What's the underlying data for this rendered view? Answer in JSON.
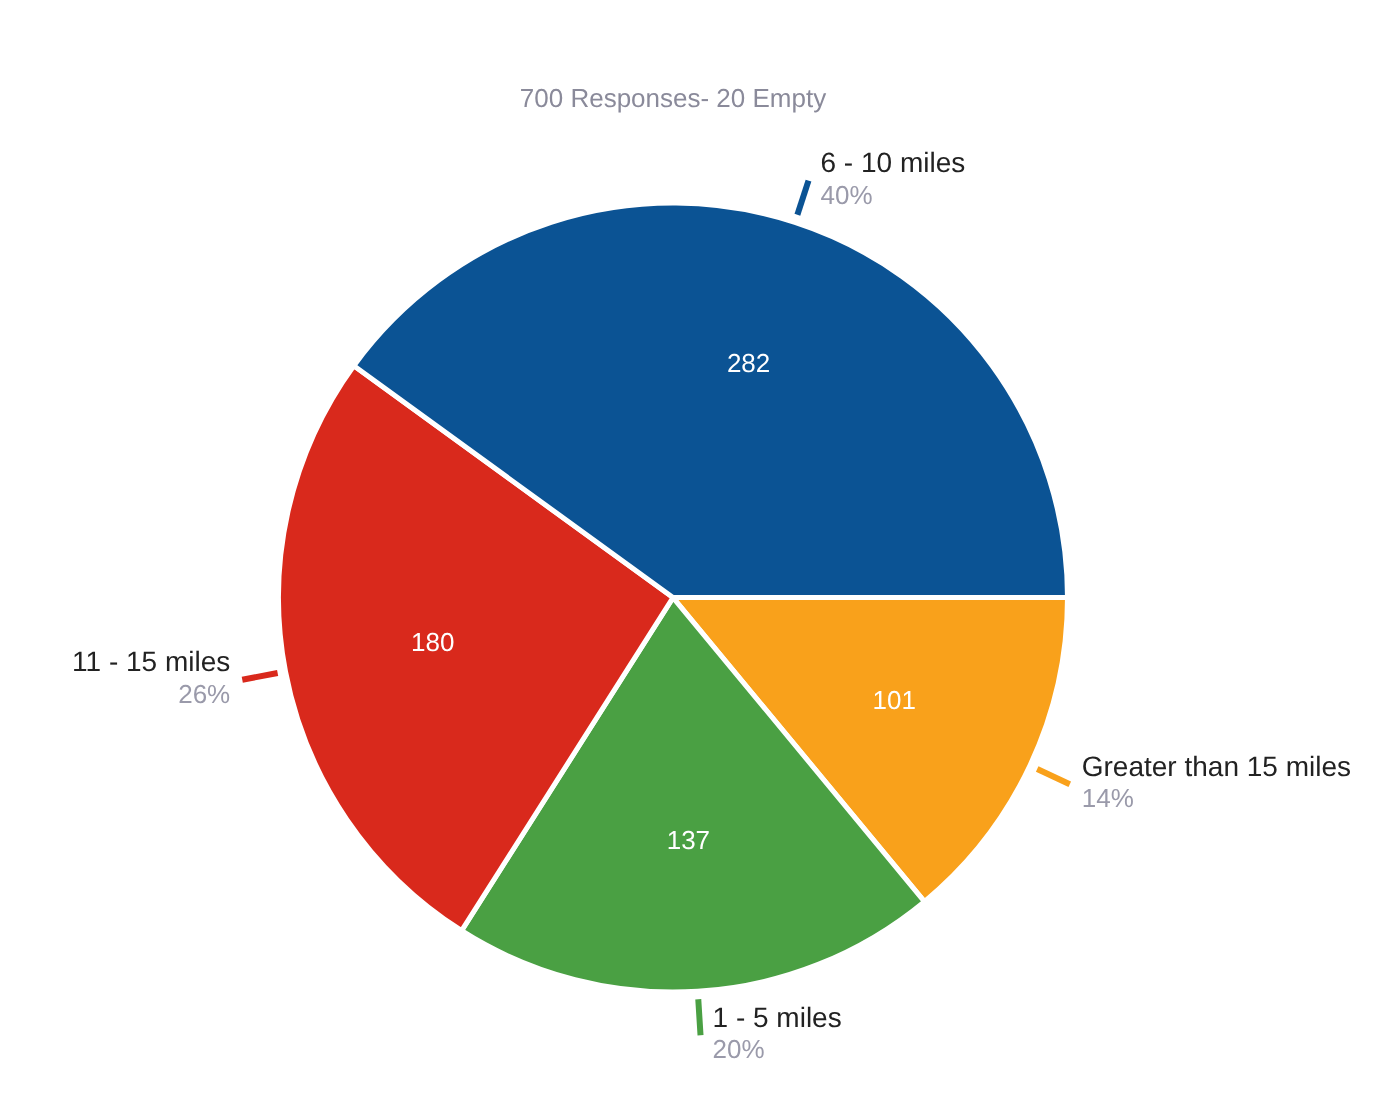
{
  "chart_data": {
    "type": "pie",
    "title": "700 Responses- 20 Empty",
    "categories": [
      "Greater than 15 miles",
      "1 - 5 miles",
      "11 - 15 miles",
      "6 - 10 miles"
    ],
    "values": [
      14,
      20,
      26,
      40
    ],
    "colors": [
      "#f9a11b",
      "#4aa043",
      "#d9291c",
      "#0b5394"
    ],
    "value_labels": [
      "14%",
      "20%",
      "26%",
      "40%"
    ],
    "annotations": [
      {
        "text": "101",
        "x": "Greater than 15 miles"
      },
      {
        "text": "137",
        "x": "1 - 5 miles"
      },
      {
        "text": "180",
        "x": "11 - 15 miles"
      },
      {
        "text": "282",
        "x": "6 - 10 miles"
      }
    ],
    "legend": false
  }
}
